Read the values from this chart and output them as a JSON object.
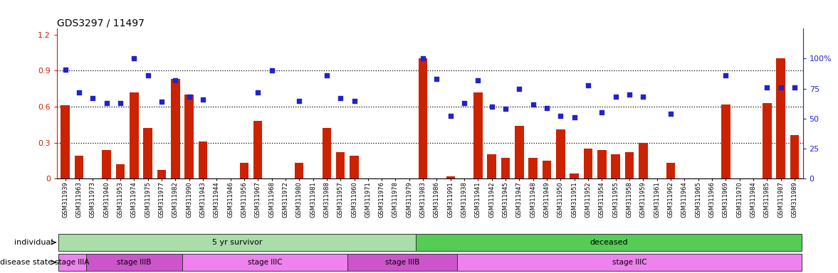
{
  "title": "GDS3297 / 11497",
  "samples": [
    "GSM311939",
    "GSM311963",
    "GSM311973",
    "GSM311940",
    "GSM311953",
    "GSM311974",
    "GSM311975",
    "GSM311977",
    "GSM311982",
    "GSM311990",
    "GSM311943",
    "GSM311944",
    "GSM311946",
    "GSM311956",
    "GSM311967",
    "GSM311968",
    "GSM311972",
    "GSM311980",
    "GSM311981",
    "GSM311988",
    "GSM311957",
    "GSM311960",
    "GSM311971",
    "GSM311976",
    "GSM311978",
    "GSM311979",
    "GSM311983",
    "GSM311986",
    "GSM311991",
    "GSM311938",
    "GSM311941",
    "GSM311942",
    "GSM311945",
    "GSM311947",
    "GSM311948",
    "GSM311949",
    "GSM311950",
    "GSM311951",
    "GSM311952",
    "GSM311954",
    "GSM311955",
    "GSM311958",
    "GSM311959",
    "GSM311961",
    "GSM311962",
    "GSM311964",
    "GSM311965",
    "GSM311966",
    "GSM311969",
    "GSM311970",
    "GSM311984",
    "GSM311985",
    "GSM311987",
    "GSM311989"
  ],
  "log2_ratio": [
    0.61,
    0.19,
    0.0,
    0.24,
    0.12,
    0.72,
    0.42,
    0.07,
    0.83,
    0.7,
    0.31,
    0.0,
    0.0,
    0.13,
    0.48,
    0.0,
    0.0,
    0.13,
    0.0,
    0.42,
    0.22,
    0.19,
    0.0,
    0.0,
    0.0,
    0.0,
    1.0,
    0.0,
    0.02,
    0.0,
    0.72,
    0.2,
    0.17,
    0.44,
    0.17,
    0.15,
    0.41,
    0.04,
    0.25,
    0.24,
    0.2,
    0.22,
    0.3,
    0.0,
    0.13,
    0.0,
    0.0,
    0.0,
    0.62,
    0.0,
    0.0,
    0.63,
    1.0,
    0.36
  ],
  "percentile": [
    0.91,
    0.72,
    0.67,
    0.63,
    0.63,
    1.0,
    0.86,
    0.64,
    0.82,
    0.68,
    0.66,
    0.0,
    0.0,
    0.0,
    0.72,
    0.9,
    0.0,
    0.65,
    0.0,
    0.86,
    0.67,
    0.65,
    0.0,
    0.0,
    0.0,
    0.0,
    1.0,
    0.83,
    0.52,
    0.63,
    0.82,
    0.6,
    0.58,
    0.75,
    0.62,
    0.59,
    0.52,
    0.51,
    0.78,
    0.55,
    0.68,
    0.7,
    0.68,
    0.0,
    0.54,
    0.0,
    0.0,
    0.0,
    0.86,
    0.0,
    0.0,
    0.76,
    0.76,
    0.76
  ],
  "individual_groups": [
    {
      "label": "5 yr survivor",
      "start": 0,
      "end": 26,
      "color": "#AADDAA"
    },
    {
      "label": "deceased",
      "start": 26,
      "end": 54,
      "color": "#55CC55"
    }
  ],
  "disease_groups": [
    {
      "label": "stage IIIA",
      "start": 0,
      "end": 2,
      "color": "#EE82EE"
    },
    {
      "label": "stage IIIB",
      "start": 2,
      "end": 9,
      "color": "#CC55CC"
    },
    {
      "label": "stage IIIC",
      "start": 9,
      "end": 21,
      "color": "#EE82EE"
    },
    {
      "label": "stage IIIB",
      "start": 21,
      "end": 29,
      "color": "#CC55CC"
    },
    {
      "label": "stage IIIC",
      "start": 29,
      "end": 54,
      "color": "#EE82EE"
    }
  ],
  "ylim_left": [
    0.0,
    1.25
  ],
  "dotted_lines": [
    0.3,
    0.6,
    0.9
  ],
  "bar_color": "#CC2200",
  "scatter_color": "#2222CC",
  "left_axis_color": "#CC2200",
  "right_axis_color": "#2222CC",
  "background_color": "#FFFFFF",
  "tick_label_size": 6.0,
  "title_fontsize": 10
}
